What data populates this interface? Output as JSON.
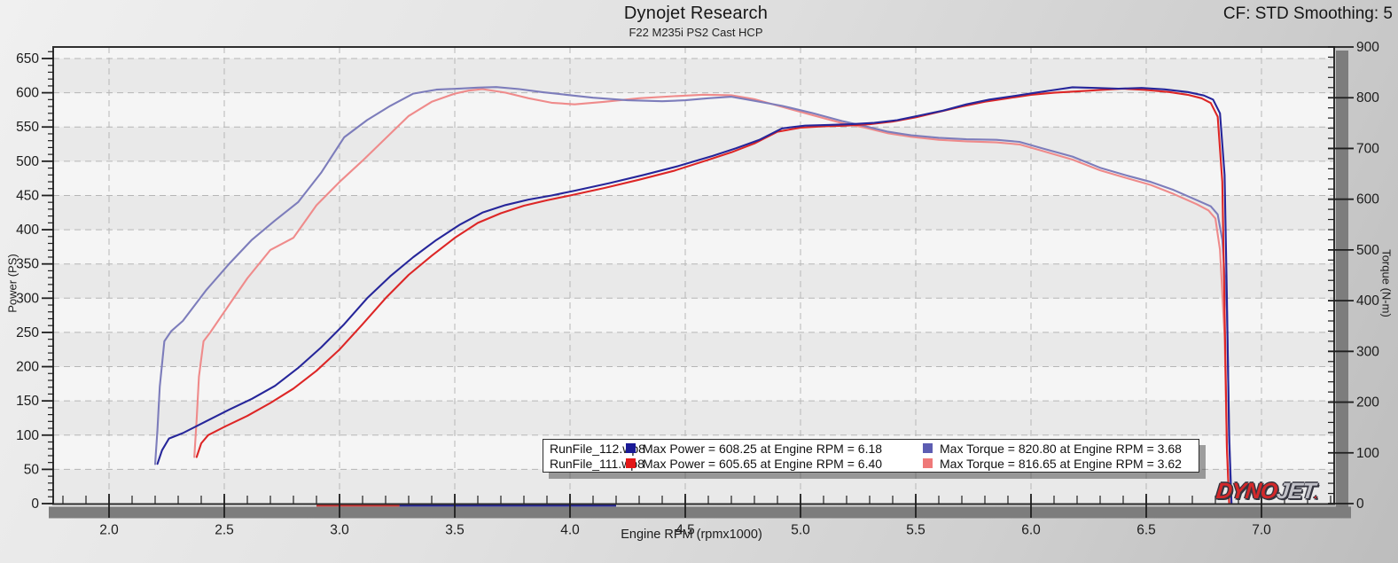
{
  "header": {
    "title": "Dynojet Research",
    "subtitle": "F22 M235i PS2 Cast HCP",
    "cf_label": "CF: STD Smoothing: 5"
  },
  "legend": {
    "rows": [
      {
        "file": "RunFile_112.wp8",
        "power_color": "#1a1a96",
        "power_text": "Max Power = 608.25 at Engine RPM = 6.18",
        "torque_color": "#5d5db2",
        "torque_text": "Max Torque = 820.80 at Engine RPM = 3.68"
      },
      {
        "file": "RunFile_111.wp8",
        "power_color": "#e31717",
        "power_text": "Max Power = 605.65 at Engine RPM = 6.40",
        "torque_color": "#ef7979",
        "torque_text": "Max Torque = 816.65 at Engine RPM = 3.62"
      }
    ]
  },
  "logo": {
    "dyno": "DYNO",
    "jet": "JET",
    "mark": ".",
    "dyno_color": "#d3282a",
    "jet_color": "#c2c2c8"
  },
  "chart_data": {
    "type": "line",
    "title": "Dynojet Research",
    "subtitle": "F22 M235i PS2 Cast HCP",
    "grid": "dashed",
    "band_colors": [
      "#e9e9e9",
      "#f5f5f5"
    ],
    "gridline_color": "#b6b6b6",
    "frame_color": "#2e2e2e",
    "scrollbar_color": "#7d7d7d",
    "x_axis": {
      "label": "Engine RPM (rpmx1000)",
      "tick_values": [
        2.0,
        2.5,
        3.0,
        3.5,
        4.0,
        4.5,
        5.0,
        5.5,
        6.0,
        6.5,
        7.0
      ],
      "tick_labels": [
        "2.0",
        "2.5",
        "3.0",
        "3.5",
        "4.0",
        "4.5",
        "5.0",
        "5.5",
        "6.0",
        "6.5",
        "7.0"
      ],
      "minor_step": 0.1,
      "range": [
        1.76,
        7.31
      ]
    },
    "y_left": {
      "label": "Power (PS)",
      "tick_values": [
        0,
        50,
        100,
        150,
        200,
        250,
        300,
        350,
        400,
        450,
        500,
        550,
        600,
        650
      ],
      "minor_step": 10,
      "range": [
        0,
        667
      ]
    },
    "y_right": {
      "label": "Torque (N-m)",
      "tick_values": [
        0,
        100,
        200,
        300,
        400,
        500,
        600,
        700,
        800,
        900
      ],
      "minor_step": 20,
      "range": [
        0,
        900
      ]
    },
    "stats": {
      "run_112": {
        "max_power_ps": 608.25,
        "max_power_rpm": 6.18,
        "max_torque_nm": 820.8,
        "max_torque_rpm": 3.68
      },
      "run_111": {
        "max_power_ps": 605.65,
        "max_power_rpm": 6.4,
        "max_torque_nm": 816.65,
        "max_torque_rpm": 3.62
      }
    },
    "series": [
      {
        "name": "RunFile_111.wp8 Torque",
        "axis": "right",
        "color": "#ef8b8b",
        "points": [
          [
            2.37,
            92
          ],
          [
            2.38,
            165
          ],
          [
            2.39,
            250
          ],
          [
            2.41,
            320
          ],
          [
            2.44,
            338
          ],
          [
            2.5,
            378
          ],
          [
            2.6,
            444
          ],
          [
            2.7,
            500
          ],
          [
            2.8,
            524
          ],
          [
            2.9,
            588
          ],
          [
            3.0,
            634
          ],
          [
            3.1,
            676
          ],
          [
            3.2,
            720
          ],
          [
            3.3,
            764
          ],
          [
            3.4,
            792
          ],
          [
            3.5,
            808
          ],
          [
            3.56,
            814
          ],
          [
            3.62,
            817
          ],
          [
            3.72,
            810
          ],
          [
            3.82,
            799
          ],
          [
            3.92,
            790
          ],
          [
            4.02,
            787
          ],
          [
            4.15,
            792
          ],
          [
            4.3,
            799
          ],
          [
            4.45,
            803
          ],
          [
            4.58,
            806
          ],
          [
            4.7,
            805
          ],
          [
            4.8,
            797
          ],
          [
            4.92,
            782
          ],
          [
            5.05,
            766
          ],
          [
            5.18,
            750
          ],
          [
            5.28,
            741
          ],
          [
            5.38,
            730
          ],
          [
            5.48,
            723
          ],
          [
            5.6,
            717
          ],
          [
            5.72,
            714
          ],
          [
            5.85,
            712
          ],
          [
            5.95,
            708
          ],
          [
            6.05,
            695
          ],
          [
            6.18,
            678
          ],
          [
            6.3,
            657
          ],
          [
            6.42,
            641
          ],
          [
            6.52,
            628
          ],
          [
            6.62,
            610
          ],
          [
            6.72,
            590
          ],
          [
            6.77,
            578
          ],
          [
            6.8,
            562
          ],
          [
            6.82,
            500
          ],
          [
            6.84,
            330
          ],
          [
            6.85,
            110
          ],
          [
            6.86,
            0
          ]
        ]
      },
      {
        "name": "RunFile_112.wp8 Torque",
        "axis": "right",
        "color": "#7d7dbb",
        "points": [
          [
            2.2,
            78
          ],
          [
            2.21,
            145
          ],
          [
            2.22,
            230
          ],
          [
            2.24,
            320
          ],
          [
            2.27,
            340
          ],
          [
            2.32,
            360
          ],
          [
            2.42,
            420
          ],
          [
            2.52,
            472
          ],
          [
            2.62,
            520
          ],
          [
            2.72,
            558
          ],
          [
            2.82,
            594
          ],
          [
            2.92,
            652
          ],
          [
            3.02,
            722
          ],
          [
            3.12,
            756
          ],
          [
            3.22,
            784
          ],
          [
            3.32,
            808
          ],
          [
            3.42,
            816
          ],
          [
            3.52,
            818
          ],
          [
            3.6,
            820
          ],
          [
            3.68,
            821
          ],
          [
            3.78,
            817
          ],
          [
            3.88,
            811
          ],
          [
            3.98,
            806
          ],
          [
            4.1,
            800
          ],
          [
            4.25,
            795
          ],
          [
            4.4,
            793
          ],
          [
            4.5,
            795
          ],
          [
            4.6,
            799
          ],
          [
            4.7,
            802
          ],
          [
            4.8,
            794
          ],
          [
            4.92,
            784
          ],
          [
            5.05,
            770
          ],
          [
            5.18,
            754
          ],
          [
            5.28,
            744
          ],
          [
            5.38,
            733
          ],
          [
            5.48,
            726
          ],
          [
            5.6,
            721
          ],
          [
            5.72,
            718
          ],
          [
            5.85,
            717
          ],
          [
            5.95,
            713
          ],
          [
            6.05,
            700
          ],
          [
            6.18,
            684
          ],
          [
            6.3,
            662
          ],
          [
            6.42,
            646
          ],
          [
            6.52,
            634
          ],
          [
            6.62,
            618
          ],
          [
            6.72,
            598
          ],
          [
            6.78,
            586
          ],
          [
            6.81,
            570
          ],
          [
            6.83,
            520
          ],
          [
            6.85,
            380
          ],
          [
            6.86,
            140
          ],
          [
            6.87,
            0
          ]
        ]
      },
      {
        "name": "RunFile_111.wp8 Power",
        "axis": "left",
        "color": "#dd2626",
        "points": [
          [
            2.38,
            68
          ],
          [
            2.4,
            88
          ],
          [
            2.43,
            100
          ],
          [
            2.5,
            112
          ],
          [
            2.6,
            128
          ],
          [
            2.7,
            147
          ],
          [
            2.8,
            168
          ],
          [
            2.9,
            194
          ],
          [
            3.0,
            225
          ],
          [
            3.1,
            262
          ],
          [
            3.2,
            300
          ],
          [
            3.3,
            334
          ],
          [
            3.4,
            362
          ],
          [
            3.5,
            388
          ],
          [
            3.6,
            410
          ],
          [
            3.7,
            424
          ],
          [
            3.8,
            435
          ],
          [
            3.9,
            443
          ],
          [
            4.0,
            450
          ],
          [
            4.15,
            461
          ],
          [
            4.3,
            473
          ],
          [
            4.45,
            486
          ],
          [
            4.6,
            502
          ],
          [
            4.7,
            513
          ],
          [
            4.8,
            526
          ],
          [
            4.9,
            543
          ],
          [
            5.0,
            549
          ],
          [
            5.1,
            551
          ],
          [
            5.2,
            552
          ],
          [
            5.3,
            554
          ],
          [
            5.4,
            558
          ],
          [
            5.5,
            564
          ],
          [
            5.6,
            572
          ],
          [
            5.7,
            580
          ],
          [
            5.8,
            587
          ],
          [
            5.9,
            592
          ],
          [
            6.0,
            597
          ],
          [
            6.1,
            600
          ],
          [
            6.2,
            602
          ],
          [
            6.3,
            604
          ],
          [
            6.4,
            606
          ],
          [
            6.5,
            604
          ],
          [
            6.6,
            601
          ],
          [
            6.68,
            597
          ],
          [
            6.74,
            592
          ],
          [
            6.78,
            585
          ],
          [
            6.81,
            565
          ],
          [
            6.83,
            470
          ],
          [
            6.84,
            280
          ],
          [
            6.85,
            80
          ],
          [
            6.86,
            0
          ]
        ]
      },
      {
        "name": "RunFile_112.wp8 Power",
        "axis": "left",
        "color": "#26269a",
        "points": [
          [
            2.21,
            58
          ],
          [
            2.23,
            78
          ],
          [
            2.26,
            95
          ],
          [
            2.32,
            103
          ],
          [
            2.42,
            120
          ],
          [
            2.52,
            137
          ],
          [
            2.62,
            153
          ],
          [
            2.72,
            172
          ],
          [
            2.82,
            198
          ],
          [
            2.92,
            228
          ],
          [
            3.02,
            262
          ],
          [
            3.12,
            300
          ],
          [
            3.22,
            332
          ],
          [
            3.32,
            360
          ],
          [
            3.42,
            385
          ],
          [
            3.52,
            407
          ],
          [
            3.62,
            425
          ],
          [
            3.72,
            436
          ],
          [
            3.82,
            444
          ],
          [
            3.92,
            450
          ],
          [
            4.02,
            457
          ],
          [
            4.17,
            468
          ],
          [
            4.32,
            480
          ],
          [
            4.47,
            493
          ],
          [
            4.62,
            508
          ],
          [
            4.72,
            519
          ],
          [
            4.82,
            531
          ],
          [
            4.92,
            548
          ],
          [
            5.02,
            552
          ],
          [
            5.12,
            553
          ],
          [
            5.22,
            554
          ],
          [
            5.32,
            556
          ],
          [
            5.42,
            560
          ],
          [
            5.52,
            567
          ],
          [
            5.62,
            574
          ],
          [
            5.72,
            583
          ],
          [
            5.82,
            590
          ],
          [
            5.92,
            595
          ],
          [
            6.02,
            600
          ],
          [
            6.1,
            604
          ],
          [
            6.18,
            608
          ],
          [
            6.28,
            607
          ],
          [
            6.38,
            606
          ],
          [
            6.48,
            607
          ],
          [
            6.58,
            605
          ],
          [
            6.68,
            601
          ],
          [
            6.75,
            596
          ],
          [
            6.79,
            590
          ],
          [
            6.82,
            570
          ],
          [
            6.84,
            480
          ],
          [
            6.85,
            300
          ],
          [
            6.86,
            90
          ],
          [
            6.87,
            0
          ]
        ]
      }
    ],
    "zero_line_marks": [
      {
        "color": "#cc3333",
        "from": 2.9,
        "to": 3.26
      },
      {
        "color": "#26269a",
        "from": 3.26,
        "to": 4.2
      }
    ]
  }
}
